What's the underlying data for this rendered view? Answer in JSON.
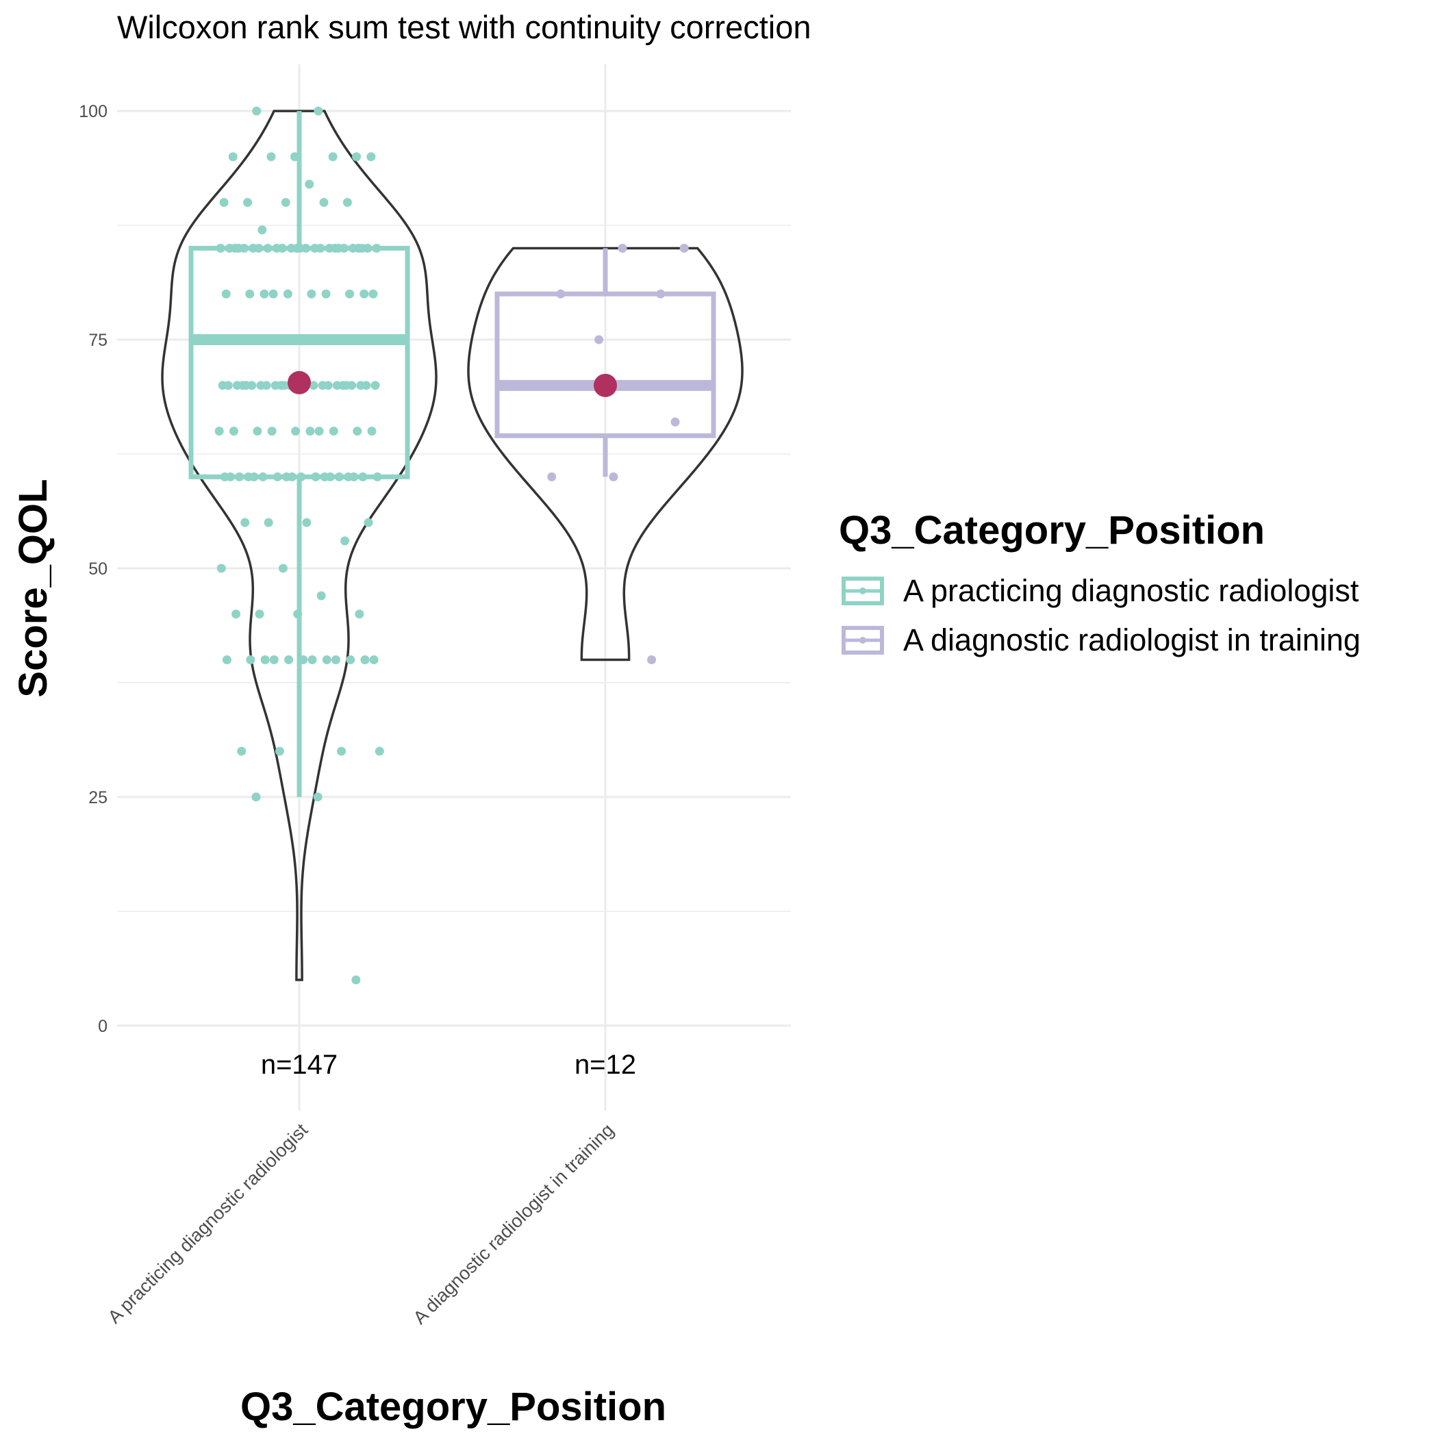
{
  "chart_data": {
    "type": "violin",
    "title": "Wilcoxon rank sum test with continuity correction",
    "xlabel": "Q3_Category_Position",
    "ylabel": "Score_QOL",
    "legend_title": "Q3_Category_Position",
    "legend_position": "right",
    "categories": [
      "A practicing diagnostic radiologist",
      "A diagnostic radiologist in training"
    ],
    "ylim": [
      -9.3,
      105.1
    ],
    "yticks": [
      0,
      25,
      50,
      75,
      100
    ],
    "yminorticks": [
      12.5,
      37.5,
      62.5,
      87.5
    ],
    "grid": true,
    "mean_color": "#b0305f",
    "violin_color": "#333333",
    "series": [
      {
        "name": "A practicing diagnostic radiologist",
        "color": "#8fd3c6",
        "n_label": "n=147",
        "whisker_low": 25,
        "q1": 60,
        "median": 75,
        "q3": 85,
        "whisker_high": 100,
        "mean": 70.3,
        "values": [
          100,
          100,
          95,
          95,
          95,
          95,
          95,
          95,
          92,
          90,
          90,
          90,
          90,
          90,
          87,
          85,
          85,
          85,
          85,
          85,
          85,
          85,
          85,
          85,
          85,
          85,
          85,
          85,
          85,
          85,
          85,
          85,
          85,
          85,
          85,
          85,
          85,
          85,
          85,
          85,
          80,
          80,
          80,
          80,
          80,
          80,
          80,
          80,
          80,
          80,
          75,
          75,
          75,
          75,
          75,
          75,
          75,
          75,
          75,
          75,
          75,
          75,
          75,
          75,
          70,
          70,
          70,
          70,
          70,
          70,
          70,
          70,
          70,
          70,
          70,
          70,
          70,
          70,
          70,
          70,
          70,
          70,
          70,
          70,
          70,
          70,
          70,
          70,
          65,
          65,
          65,
          65,
          65,
          65,
          65,
          65,
          65,
          65,
          60,
          60,
          60,
          60,
          60,
          60,
          60,
          60,
          60,
          60,
          60,
          60,
          60,
          60,
          60,
          60,
          60,
          60,
          55,
          55,
          55,
          55,
          53,
          50,
          50,
          47,
          45,
          45,
          45,
          45,
          40,
          40,
          40,
          40,
          40,
          40,
          40,
          40,
          40,
          40,
          40,
          40,
          30,
          30,
          30,
          30,
          25,
          25,
          5
        ]
      },
      {
        "name": "A diagnostic radiologist in training",
        "color": "#bcb8da",
        "n_label": "n=12",
        "whisker_low": 60,
        "q1": 64.5,
        "median": 70,
        "q3": 80,
        "whisker_high": 85,
        "mean": 70,
        "values": [
          85,
          85,
          80,
          80,
          75,
          70,
          70,
          70,
          66,
          60,
          60,
          40
        ]
      }
    ]
  }
}
